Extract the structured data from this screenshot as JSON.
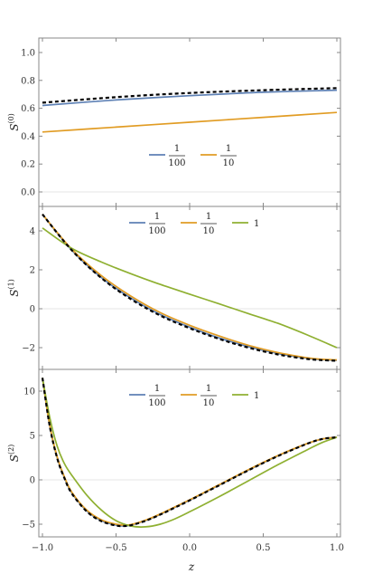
{
  "chart_data": {
    "type": "line",
    "xlabel": "z",
    "xlim": [
      -1.0,
      1.0
    ],
    "xticks": [
      "−1.0",
      "−0.5",
      "0.0",
      "0.5",
      "1.0"
    ],
    "panels": [
      {
        "ylabel_base": "S",
        "ylabel_sup": "(0)",
        "ylim": [
          -0.1,
          1.1
        ],
        "yticks": [
          "0.0",
          "0.2",
          "0.4",
          "0.6",
          "0.8",
          "1.0"
        ],
        "legend": [
          {
            "num": "1",
            "den": "100",
            "color": "#5e81b5"
          },
          {
            "num": "1",
            "den": "10",
            "color": "#e19c24"
          }
        ],
        "series": [
          {
            "color": "#5e81b5",
            "x": [
              -1,
              -0.5,
              0,
              0.5,
              1
            ],
            "y": [
              0.62,
              0.66,
              0.69,
              0.715,
              0.73
            ]
          },
          {
            "color": "#e19c24",
            "x": [
              -1,
              -0.5,
              0,
              0.5,
              1
            ],
            "y": [
              0.43,
              0.465,
              0.5,
              0.535,
              0.57
            ]
          },
          {
            "dashed": true,
            "x": [
              -1,
              -0.5,
              0,
              0.5,
              1
            ],
            "y": [
              0.64,
              0.68,
              0.71,
              0.73,
              0.745
            ]
          }
        ]
      },
      {
        "ylabel_base": "S",
        "ylabel_sup": "(1)",
        "ylim": [
          -2.8,
          5.2
        ],
        "yticks": [
          "−2",
          "0",
          "2",
          "4"
        ],
        "legend": [
          {
            "num": "1",
            "den": "100",
            "color": "#5e81b5"
          },
          {
            "num": "1",
            "den": "10",
            "color": "#e19c24"
          },
          {
            "num": "1",
            "den": "",
            "color": "#8fb032"
          }
        ],
        "series": [
          {
            "color": "#5e81b5",
            "x": [
              -1,
              -0.8,
              -0.6,
              -0.4,
              -0.2,
              0,
              0.2,
              0.4,
              0.6,
              0.8,
              0.9,
              1
            ],
            "y": [
              4.85,
              3.0,
              1.6,
              0.55,
              -0.3,
              -0.95,
              -1.5,
              -1.95,
              -2.3,
              -2.55,
              -2.62,
              -2.65
            ]
          },
          {
            "color": "#e19c24",
            "x": [
              -1,
              -0.8,
              -0.6,
              -0.4,
              -0.2,
              0,
              0.2,
              0.4,
              0.6,
              0.8,
              0.9,
              1
            ],
            "y": [
              4.85,
              3.05,
              1.7,
              0.65,
              -0.2,
              -0.85,
              -1.4,
              -1.88,
              -2.25,
              -2.52,
              -2.6,
              -2.63
            ]
          },
          {
            "color": "#8fb032",
            "x": [
              -1,
              -0.8,
              -0.6,
              -0.4,
              -0.2,
              0,
              0.2,
              0.4,
              0.6,
              0.8,
              1
            ],
            "y": [
              4.15,
              3.1,
              2.4,
              1.8,
              1.25,
              0.75,
              0.25,
              -0.25,
              -0.75,
              -1.35,
              -2.0
            ]
          },
          {
            "dashed": true,
            "x": [
              -1,
              -0.8,
              -0.6,
              -0.4,
              -0.2,
              0,
              0.2,
              0.4,
              0.6,
              0.8,
              0.9,
              1
            ],
            "y": [
              4.85,
              3.0,
              1.58,
              0.5,
              -0.35,
              -1.0,
              -1.55,
              -2.0,
              -2.35,
              -2.58,
              -2.64,
              -2.67
            ]
          }
        ]
      },
      {
        "ylabel_base": "S",
        "ylabel_sup": "(2)",
        "ylim": [
          -6.2,
          12.3
        ],
        "yticks": [
          "−5",
          "0",
          "5",
          "10"
        ],
        "legend": [
          {
            "num": "1",
            "den": "100",
            "color": "#5e81b5"
          },
          {
            "num": "1",
            "den": "10",
            "color": "#e19c24"
          },
          {
            "num": "1",
            "den": "",
            "color": "#8fb032"
          }
        ],
        "series": [
          {
            "color": "#5e81b5",
            "x": [
              -1,
              -0.95,
              -0.9,
              -0.85,
              -0.8,
              -0.7,
              -0.6,
              -0.5,
              -0.45,
              -0.4,
              -0.3,
              -0.2,
              -0.1,
              0,
              0.2,
              0.4,
              0.6,
              0.8,
              0.9,
              1
            ],
            "y": [
              11.5,
              6.0,
              2.5,
              0.2,
              -1.5,
              -3.5,
              -4.6,
              -5.1,
              -5.2,
              -5.1,
              -4.6,
              -3.9,
              -3.1,
              -2.3,
              -0.6,
              1.1,
              2.7,
              4.1,
              4.6,
              4.8
            ]
          },
          {
            "color": "#e19c24",
            "x": [
              -1,
              -0.95,
              -0.9,
              -0.85,
              -0.8,
              -0.7,
              -0.6,
              -0.5,
              -0.45,
              -0.4,
              -0.3,
              -0.2,
              -0.1,
              0,
              0.2,
              0.4,
              0.6,
              0.8,
              0.9,
              1
            ],
            "y": [
              11.5,
              6.1,
              2.6,
              0.3,
              -1.4,
              -3.4,
              -4.5,
              -5.0,
              -5.1,
              -5.05,
              -4.55,
              -3.85,
              -3.05,
              -2.25,
              -0.55,
              1.15,
              2.75,
              4.1,
              4.6,
              4.8
            ]
          },
          {
            "color": "#8fb032",
            "x": [
              -1,
              -0.95,
              -0.9,
              -0.85,
              -0.8,
              -0.7,
              -0.6,
              -0.5,
              -0.4,
              -0.3,
              -0.2,
              -0.1,
              0,
              0.2,
              0.4,
              0.6,
              0.8,
              0.9,
              1
            ],
            "y": [
              11.5,
              7.0,
              3.8,
              1.8,
              0.5,
              -1.7,
              -3.4,
              -4.6,
              -5.2,
              -5.3,
              -5.0,
              -4.4,
              -3.6,
              -1.9,
              -0.1,
              1.7,
              3.4,
              4.2,
              4.8
            ]
          },
          {
            "dashed": true,
            "x": [
              -1,
              -0.95,
              -0.9,
              -0.85,
              -0.8,
              -0.7,
              -0.6,
              -0.5,
              -0.45,
              -0.4,
              -0.3,
              -0.2,
              -0.1,
              0,
              0.2,
              0.4,
              0.6,
              0.8,
              0.9,
              1
            ],
            "y": [
              11.5,
              6.0,
              2.45,
              0.15,
              -1.55,
              -3.55,
              -4.65,
              -5.15,
              -5.2,
              -5.12,
              -4.62,
              -3.92,
              -3.12,
              -2.32,
              -0.62,
              1.08,
              2.68,
              4.08,
              4.6,
              4.8
            ]
          }
        ]
      }
    ]
  }
}
